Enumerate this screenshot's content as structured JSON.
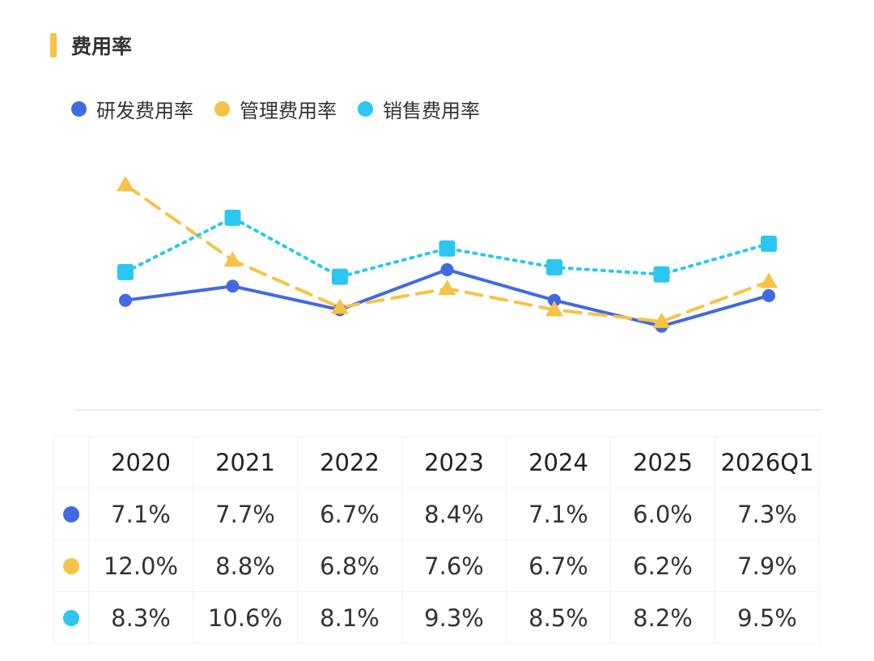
{
  "title": "费用率",
  "colors": {
    "title_bar": "#F7C245",
    "series": [
      "#4169E1",
      "#F7C245",
      "#2BC7F0"
    ],
    "grid": "#ececec"
  },
  "chart_data": {
    "type": "line",
    "title": "费用率",
    "categories": [
      "2020",
      "2021",
      "2022",
      "2023",
      "2024",
      "2025",
      "2026Q1"
    ],
    "legend_position": "top-left",
    "grid": false,
    "ylim": [
      3,
      14
    ],
    "series": [
      {
        "name": "研发费用率",
        "color": "#4169E1",
        "marker": "circle",
        "line": "solid",
        "values": [
          7.1,
          7.7,
          6.7,
          8.4,
          7.1,
          6.0,
          7.3
        ],
        "labels": [
          "7.1%",
          "7.7%",
          "6.7%",
          "8.4%",
          "7.1%",
          "6.0%",
          "7.3%"
        ]
      },
      {
        "name": "管理费用率",
        "color": "#F7C245",
        "marker": "triangle",
        "line": "dashed",
        "values": [
          12.0,
          8.8,
          6.8,
          7.6,
          6.7,
          6.2,
          7.9
        ],
        "labels": [
          "12.0%",
          "8.8%",
          "6.8%",
          "7.6%",
          "6.7%",
          "6.2%",
          "7.9%"
        ]
      },
      {
        "name": "销售费用率",
        "color": "#2BC7F0",
        "marker": "square",
        "line": "dotted",
        "values": [
          8.3,
          10.6,
          8.1,
          9.3,
          8.5,
          8.2,
          9.5
        ],
        "labels": [
          "8.3%",
          "10.6%",
          "8.1%",
          "9.3%",
          "8.5%",
          "8.2%",
          "9.5%"
        ]
      }
    ]
  }
}
